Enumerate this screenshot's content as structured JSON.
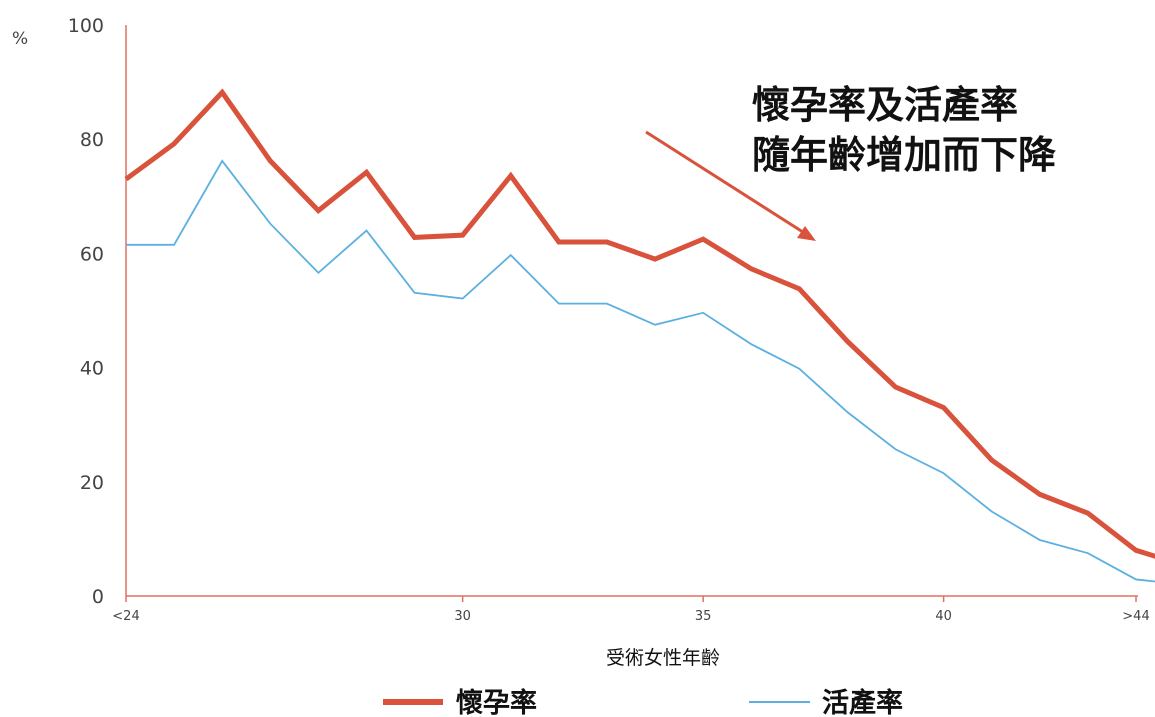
{
  "chart_data": {
    "type": "line",
    "xlabel": "受術女性年齡",
    "ylabel": "%",
    "ylim": [
      0,
      100
    ],
    "yticks": [
      0,
      20,
      40,
      60,
      80,
      100
    ],
    "xlim": [
      23,
      44
    ],
    "xticks": [
      {
        "value": 23,
        "label": "<24"
      },
      {
        "value": 30,
        "label": "30"
      },
      {
        "value": 35,
        "label": "35"
      },
      {
        "value": 40,
        "label": "40"
      },
      {
        "value": 44,
        "label": ">44"
      }
    ],
    "x": [
      23,
      24,
      25,
      26,
      27,
      28,
      29,
      30,
      31,
      32,
      33,
      34,
      35,
      36,
      37,
      38,
      39,
      40,
      41,
      42,
      43,
      44,
      45
    ],
    "series": [
      {
        "name": "懷孕率",
        "color": "#d9533c",
        "values": [
          73.0,
          79.2,
          88.2,
          76.2,
          67.5,
          74.2,
          62.8,
          63.2,
          73.6,
          62.0,
          62.0,
          59.0,
          62.5,
          57.3,
          53.8,
          44.6,
          36.6,
          33.0,
          23.8,
          17.8,
          14.5,
          8.0,
          5.4
        ]
      },
      {
        "name": "活產率",
        "color": "#5bb0e0",
        "values": [
          61.5,
          61.5,
          76.2,
          65.2,
          56.6,
          64.0,
          53.1,
          52.1,
          59.7,
          51.2,
          51.2,
          47.5,
          49.6,
          44.1,
          39.8,
          32.2,
          25.7,
          21.5,
          14.8,
          9.8,
          7.5,
          2.9,
          2.0
        ]
      }
    ],
    "annotation": {
      "lines": [
        "懷孕率及活產率",
        "隨年齡增加而下降"
      ],
      "arrow_color": "#d9533c"
    },
    "legend": "bottom",
    "grid": false
  }
}
